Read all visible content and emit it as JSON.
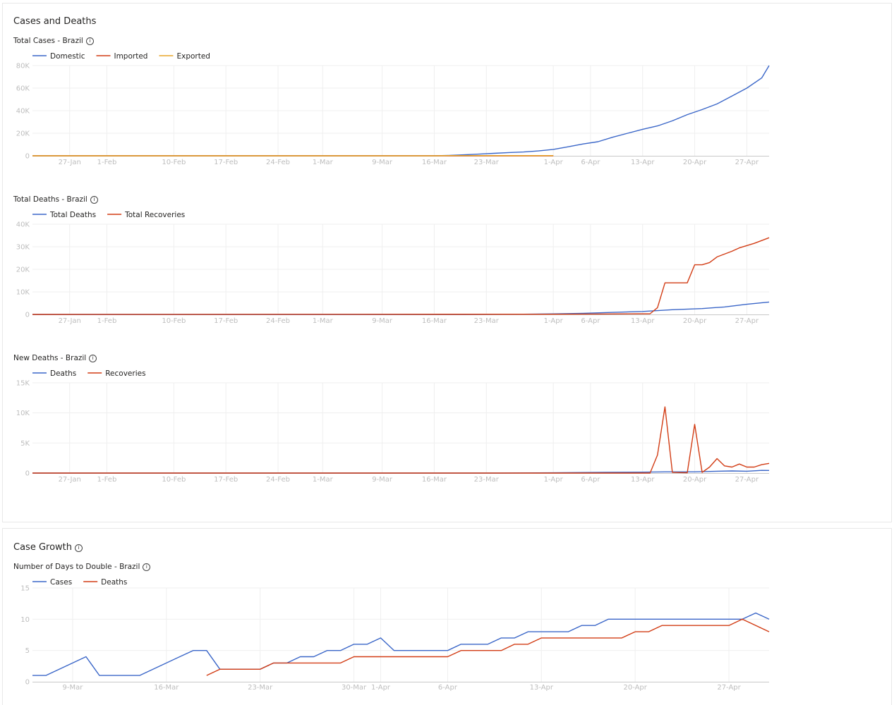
{
  "sections": [
    {
      "title": "Cases and Deaths"
    },
    {
      "title": "Case Growth"
    }
  ],
  "colors": {
    "blue": "#3a66c8",
    "red": "#d23c14",
    "orange": "#e8a628",
    "grid": "#efefef",
    "tick": "#bdbdbd",
    "axis": "#c8c8c8"
  },
  "chart_data": [
    {
      "type": "line",
      "title": "Total Cases - Brazil",
      "x_domain": [
        "2020-01-22",
        "2020-04-30"
      ],
      "x_ticks": [
        {
          "date": "2020-01-27",
          "label": "27-Jan"
        },
        {
          "date": "2020-02-01",
          "label": "1-Feb"
        },
        {
          "date": "2020-02-10",
          "label": "10-Feb"
        },
        {
          "date": "2020-02-17",
          "label": "17-Feb"
        },
        {
          "date": "2020-02-24",
          "label": "24-Feb"
        },
        {
          "date": "2020-03-01",
          "label": "1-Mar"
        },
        {
          "date": "2020-03-09",
          "label": "9-Mar"
        },
        {
          "date": "2020-03-16",
          "label": "16-Mar"
        },
        {
          "date": "2020-03-23",
          "label": "23-Mar"
        },
        {
          "date": "2020-04-01",
          "label": "1-Apr"
        },
        {
          "date": "2020-04-06",
          "label": "6-Apr"
        },
        {
          "date": "2020-04-13",
          "label": "13-Apr"
        },
        {
          "date": "2020-04-20",
          "label": "20-Apr"
        },
        {
          "date": "2020-04-27",
          "label": "27-Apr"
        }
      ],
      "ylim": [
        0,
        80000
      ],
      "y_ticks": [
        {
          "value": 0,
          "label": "0"
        },
        {
          "value": 20000,
          "label": "20K"
        },
        {
          "value": 40000,
          "label": "40K"
        },
        {
          "value": 60000,
          "label": "60K"
        },
        {
          "value": 80000,
          "label": "80K"
        }
      ],
      "legend": "top-left",
      "series": [
        {
          "name": "Domestic",
          "color": "#3a66c8",
          "points": [
            [
              "2020-01-22",
              0
            ],
            [
              "2020-03-16",
              0
            ],
            [
              "2020-03-18",
              300
            ],
            [
              "2020-03-20",
              900
            ],
            [
              "2020-03-22",
              1500
            ],
            [
              "2020-03-24",
              2200
            ],
            [
              "2020-03-26",
              2900
            ],
            [
              "2020-03-28",
              3400
            ],
            [
              "2020-03-30",
              4300
            ],
            [
              "2020-04-01",
              5700
            ],
            [
              "2020-04-03",
              8000
            ],
            [
              "2020-04-05",
              10500
            ],
            [
              "2020-04-07",
              12500
            ],
            [
              "2020-04-09",
              16500
            ],
            [
              "2020-04-11",
              20000
            ],
            [
              "2020-04-13",
              23500
            ],
            [
              "2020-04-15",
              26500
            ],
            [
              "2020-04-17",
              31000
            ],
            [
              "2020-04-19",
              36500
            ],
            [
              "2020-04-21",
              41000
            ],
            [
              "2020-04-23",
              46000
            ],
            [
              "2020-04-25",
              53000
            ],
            [
              "2020-04-27",
              60000
            ],
            [
              "2020-04-29",
              69000
            ],
            [
              "2020-04-30",
              80000
            ]
          ]
        },
        {
          "name": "Imported",
          "color": "#d23c14",
          "points": [
            [
              "2020-01-22",
              0
            ],
            [
              "2020-04-01",
              0
            ]
          ]
        },
        {
          "name": "Exported",
          "color": "#e8a628",
          "points": [
            [
              "2020-01-22",
              0
            ],
            [
              "2020-03-16",
              0
            ],
            [
              "2020-03-18",
              200
            ],
            [
              "2020-04-01",
              200
            ]
          ]
        }
      ]
    },
    {
      "type": "line",
      "title": "Total Deaths - Brazil",
      "x_domain": [
        "2020-01-22",
        "2020-04-30"
      ],
      "x_ticks": [
        {
          "date": "2020-01-27",
          "label": "27-Jan"
        },
        {
          "date": "2020-02-01",
          "label": "1-Feb"
        },
        {
          "date": "2020-02-10",
          "label": "10-Feb"
        },
        {
          "date": "2020-02-17",
          "label": "17-Feb"
        },
        {
          "date": "2020-02-24",
          "label": "24-Feb"
        },
        {
          "date": "2020-03-01",
          "label": "1-Mar"
        },
        {
          "date": "2020-03-09",
          "label": "9-Mar"
        },
        {
          "date": "2020-03-16",
          "label": "16-Mar"
        },
        {
          "date": "2020-03-23",
          "label": "23-Mar"
        },
        {
          "date": "2020-04-01",
          "label": "1-Apr"
        },
        {
          "date": "2020-04-06",
          "label": "6-Apr"
        },
        {
          "date": "2020-04-13",
          "label": "13-Apr"
        },
        {
          "date": "2020-04-20",
          "label": "20-Apr"
        },
        {
          "date": "2020-04-27",
          "label": "27-Apr"
        }
      ],
      "ylim": [
        0,
        40000
      ],
      "y_ticks": [
        {
          "value": 0,
          "label": "0"
        },
        {
          "value": 10000,
          "label": "10K"
        },
        {
          "value": 20000,
          "label": "20K"
        },
        {
          "value": 30000,
          "label": "30K"
        },
        {
          "value": 40000,
          "label": "40K"
        }
      ],
      "legend": "top-left",
      "series": [
        {
          "name": "Total Deaths",
          "color": "#3a66c8",
          "points": [
            [
              "2020-01-22",
              0
            ],
            [
              "2020-03-20",
              0
            ],
            [
              "2020-03-28",
              100
            ],
            [
              "2020-04-01",
              240
            ],
            [
              "2020-04-05",
              500
            ],
            [
              "2020-04-09",
              900
            ],
            [
              "2020-04-13",
              1300
            ],
            [
              "2020-04-17",
              2100
            ],
            [
              "2020-04-21",
              2600
            ],
            [
              "2020-04-24",
              3300
            ],
            [
              "2020-04-27",
              4500
            ],
            [
              "2020-04-30",
              5500
            ]
          ]
        },
        {
          "name": "Total Recoveries",
          "color": "#d23c14",
          "points": [
            [
              "2020-01-22",
              0
            ],
            [
              "2020-03-31",
              100
            ],
            [
              "2020-04-07",
              200
            ],
            [
              "2020-04-14",
              300
            ],
            [
              "2020-04-15",
              3000
            ],
            [
              "2020-04-16",
              14000
            ],
            [
              "2020-04-19",
              14000
            ],
            [
              "2020-04-20",
              22000
            ],
            [
              "2020-04-21",
              22000
            ],
            [
              "2020-04-22",
              23000
            ],
            [
              "2020-04-23",
              25500
            ],
            [
              "2020-04-25",
              28000
            ],
            [
              "2020-04-26",
              29500
            ],
            [
              "2020-04-28",
              31500
            ],
            [
              "2020-04-30",
              34000
            ]
          ]
        }
      ]
    },
    {
      "type": "line",
      "title": "New Deaths - Brazil",
      "x_domain": [
        "2020-01-22",
        "2020-04-30"
      ],
      "x_ticks": [
        {
          "date": "2020-01-27",
          "label": "27-Jan"
        },
        {
          "date": "2020-02-01",
          "label": "1-Feb"
        },
        {
          "date": "2020-02-10",
          "label": "10-Feb"
        },
        {
          "date": "2020-02-17",
          "label": "17-Feb"
        },
        {
          "date": "2020-02-24",
          "label": "24-Feb"
        },
        {
          "date": "2020-03-01",
          "label": "1-Mar"
        },
        {
          "date": "2020-03-09",
          "label": "9-Mar"
        },
        {
          "date": "2020-03-16",
          "label": "16-Mar"
        },
        {
          "date": "2020-03-23",
          "label": "23-Mar"
        },
        {
          "date": "2020-04-01",
          "label": "1-Apr"
        },
        {
          "date": "2020-04-06",
          "label": "6-Apr"
        },
        {
          "date": "2020-04-13",
          "label": "13-Apr"
        },
        {
          "date": "2020-04-20",
          "label": "20-Apr"
        },
        {
          "date": "2020-04-27",
          "label": "27-Apr"
        }
      ],
      "ylim": [
        0,
        15000
      ],
      "y_ticks": [
        {
          "value": 0,
          "label": "0"
        },
        {
          "value": 5000,
          "label": "5K"
        },
        {
          "value": 10000,
          "label": "10K"
        },
        {
          "value": 15000,
          "label": "15K"
        }
      ],
      "legend": "top-left",
      "series": [
        {
          "name": "Deaths",
          "color": "#3a66c8",
          "points": [
            [
              "2020-01-22",
              0
            ],
            [
              "2020-03-25",
              0
            ],
            [
              "2020-04-01",
              50
            ],
            [
              "2020-04-08",
              120
            ],
            [
              "2020-04-13",
              150
            ],
            [
              "2020-04-16",
              200
            ],
            [
              "2020-04-20",
              200
            ],
            [
              "2020-04-23",
              300
            ],
            [
              "2020-04-25",
              350
            ],
            [
              "2020-04-27",
              300
            ],
            [
              "2020-04-29",
              450
            ],
            [
              "2020-04-30",
              430
            ]
          ]
        },
        {
          "name": "Recoveries",
          "color": "#d23c14",
          "points": [
            [
              "2020-01-22",
              0
            ],
            [
              "2020-04-14",
              0
            ],
            [
              "2020-04-15",
              3000
            ],
            [
              "2020-04-16",
              11000
            ],
            [
              "2020-04-17",
              100
            ],
            [
              "2020-04-19",
              50
            ],
            [
              "2020-04-20",
              8100
            ],
            [
              "2020-04-21",
              100
            ],
            [
              "2020-04-22",
              1000
            ],
            [
              "2020-04-23",
              2400
            ],
            [
              "2020-04-24",
              1200
            ],
            [
              "2020-04-25",
              1000
            ],
            [
              "2020-04-26",
              1500
            ],
            [
              "2020-04-27",
              1000
            ],
            [
              "2020-04-28",
              1000
            ],
            [
              "2020-04-29",
              1400
            ],
            [
              "2020-04-30",
              1600
            ]
          ]
        }
      ]
    },
    {
      "type": "line",
      "title": "Number of Days to Double - Brazil",
      "x_domain": [
        "2020-03-06",
        "2020-04-30"
      ],
      "x_ticks": [
        {
          "date": "2020-03-09",
          "label": "9-Mar"
        },
        {
          "date": "2020-03-16",
          "label": "16-Mar"
        },
        {
          "date": "2020-03-23",
          "label": "23-Mar"
        },
        {
          "date": "2020-03-30",
          "label": "30-Mar"
        },
        {
          "date": "2020-04-01",
          "label": "1-Apr"
        },
        {
          "date": "2020-04-06",
          "label": "6-Apr"
        },
        {
          "date": "2020-04-13",
          "label": "13-Apr"
        },
        {
          "date": "2020-04-20",
          "label": "20-Apr"
        },
        {
          "date": "2020-04-27",
          "label": "27-Apr"
        }
      ],
      "ylim": [
        0,
        15
      ],
      "y_ticks": [
        {
          "value": 0,
          "label": "0"
        },
        {
          "value": 5,
          "label": "5"
        },
        {
          "value": 10,
          "label": "10"
        },
        {
          "value": 15,
          "label": "15"
        }
      ],
      "legend": "top-left",
      "series": [
        {
          "name": "Cases",
          "color": "#3a66c8",
          "points": [
            [
              "2020-03-06",
              1
            ],
            [
              "2020-03-07",
              1
            ],
            [
              "2020-03-10",
              4
            ],
            [
              "2020-03-11",
              1
            ],
            [
              "2020-03-13",
              1
            ],
            [
              "2020-03-14",
              1
            ],
            [
              "2020-03-17",
              4
            ],
            [
              "2020-03-18",
              5
            ],
            [
              "2020-03-19",
              5
            ],
            [
              "2020-03-20",
              2
            ],
            [
              "2020-03-22",
              2
            ],
            [
              "2020-03-23",
              2
            ],
            [
              "2020-03-24",
              3
            ],
            [
              "2020-03-25",
              3
            ],
            [
              "2020-03-26",
              4
            ],
            [
              "2020-03-27",
              4
            ],
            [
              "2020-03-28",
              5
            ],
            [
              "2020-03-29",
              5
            ],
            [
              "2020-03-30",
              6
            ],
            [
              "2020-03-31",
              6
            ],
            [
              "2020-04-01",
              7
            ],
            [
              "2020-04-02",
              5
            ],
            [
              "2020-04-06",
              5
            ],
            [
              "2020-04-07",
              6
            ],
            [
              "2020-04-09",
              6
            ],
            [
              "2020-04-10",
              7
            ],
            [
              "2020-04-11",
              7
            ],
            [
              "2020-04-12",
              8
            ],
            [
              "2020-04-15",
              8
            ],
            [
              "2020-04-16",
              9
            ],
            [
              "2020-04-17",
              9
            ],
            [
              "2020-04-18",
              10
            ],
            [
              "2020-04-28",
              10
            ],
            [
              "2020-04-29",
              11
            ],
            [
              "2020-04-30",
              10
            ]
          ]
        },
        {
          "name": "Deaths",
          "color": "#d23c14",
          "points": [
            [
              "2020-03-19",
              1
            ],
            [
              "2020-03-20",
              2
            ],
            [
              "2020-03-22",
              2
            ],
            [
              "2020-03-23",
              2
            ],
            [
              "2020-03-24",
              3
            ],
            [
              "2020-03-29",
              3
            ],
            [
              "2020-03-30",
              4
            ],
            [
              "2020-04-03",
              4
            ],
            [
              "2020-04-04",
              4
            ],
            [
              "2020-04-05",
              4
            ],
            [
              "2020-04-06",
              4
            ],
            [
              "2020-04-07",
              5
            ],
            [
              "2020-04-08",
              5
            ],
            [
              "2020-04-09",
              5
            ],
            [
              "2020-04-10",
              5
            ],
            [
              "2020-04-11",
              6
            ],
            [
              "2020-04-12",
              6
            ],
            [
              "2020-04-13",
              7
            ],
            [
              "2020-04-14",
              7
            ],
            [
              "2020-04-19",
              7
            ],
            [
              "2020-04-20",
              8
            ],
            [
              "2020-04-21",
              8
            ],
            [
              "2020-04-22",
              9
            ],
            [
              "2020-04-24",
              9
            ],
            [
              "2020-04-27",
              9
            ],
            [
              "2020-04-28",
              10
            ],
            [
              "2020-04-30",
              8
            ]
          ]
        }
      ]
    }
  ]
}
